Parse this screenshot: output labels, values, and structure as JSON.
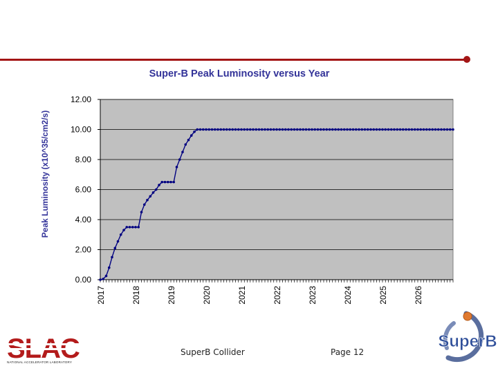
{
  "slide": {
    "footer_center": "SuperB Collider",
    "footer_page": "Page 12",
    "slac_logo_text": "SLAC",
    "slac_logo_subtext": "NATIONAL ACCELERATOR LABORATORY",
    "superb_logo_text": "SuperB"
  },
  "colors": {
    "accent_rule": "#a31515",
    "plot_background": "#c0c0c0",
    "series_color": "#000080",
    "title_color": "#333399"
  },
  "chart_data": {
    "type": "line",
    "title": "Super-B Peak Luminosity versus Year",
    "xlabel": "",
    "ylabel": "Peak Luminosity (x10^35/cm2/s)",
    "ylim": [
      0,
      12
    ],
    "yticks": [
      "0.00",
      "2.00",
      "4.00",
      "6.00",
      "8.00",
      "10.00",
      "12.00"
    ],
    "x_range": [
      2017.0,
      2027.0
    ],
    "x_tick_labels": [
      "2017",
      "2018",
      "2019",
      "2020",
      "2021",
      "2022",
      "2023",
      "2024",
      "2025",
      "2026"
    ],
    "grid": "horizontal",
    "legend": "none",
    "series": [
      {
        "name": "Peak Luminosity",
        "x": [
          2017.0,
          2017.083,
          2017.167,
          2017.25,
          2017.333,
          2017.417,
          2017.5,
          2017.583,
          2017.667,
          2017.75,
          2017.833,
          2017.917,
          2018.0,
          2018.083,
          2018.167,
          2018.25,
          2018.333,
          2018.417,
          2018.5,
          2018.583,
          2018.667,
          2018.75,
          2018.833,
          2018.917,
          2019.0,
          2019.083,
          2019.167,
          2019.25,
          2019.333,
          2019.417,
          2019.5,
          2019.583,
          2019.667,
          2019.75,
          2019.833,
          2019.917,
          2020.0,
          2020.083,
          2020.167,
          2020.25,
          2020.333,
          2020.417,
          2020.5,
          2020.583,
          2020.667,
          2020.75,
          2020.833,
          2020.917,
          2021.0,
          2021.083,
          2021.167,
          2021.25,
          2021.333,
          2021.417,
          2021.5,
          2021.583,
          2021.667,
          2021.75,
          2021.833,
          2021.917,
          2022.0,
          2022.083,
          2022.167,
          2022.25,
          2022.333,
          2022.417,
          2022.5,
          2022.583,
          2022.667,
          2022.75,
          2022.833,
          2022.917,
          2023.0,
          2023.083,
          2023.167,
          2023.25,
          2023.333,
          2023.417,
          2023.5,
          2023.583,
          2023.667,
          2023.75,
          2023.833,
          2023.917,
          2024.0,
          2024.083,
          2024.167,
          2024.25,
          2024.333,
          2024.417,
          2024.5,
          2024.583,
          2024.667,
          2024.75,
          2024.833,
          2024.917,
          2025.0,
          2025.083,
          2025.167,
          2025.25,
          2025.333,
          2025.417,
          2025.5,
          2025.583,
          2025.667,
          2025.75,
          2025.833,
          2025.917,
          2026.0,
          2026.083,
          2026.167,
          2026.25,
          2026.333,
          2026.417,
          2026.5,
          2026.583,
          2026.667,
          2026.75,
          2026.833,
          2026.917,
          2027.0
        ],
        "y": [
          0,
          0.05,
          0.25,
          0.8,
          1.5,
          2.1,
          2.55,
          3.0,
          3.3,
          3.5,
          3.5,
          3.5,
          3.5,
          3.5,
          4.5,
          5.0,
          5.3,
          5.55,
          5.8,
          6.0,
          6.3,
          6.5,
          6.5,
          6.5,
          6.5,
          6.5,
          7.5,
          8.0,
          8.5,
          9.0,
          9.3,
          9.6,
          9.85,
          10,
          10,
          10,
          10,
          10,
          10,
          10,
          10,
          10,
          10,
          10,
          10,
          10,
          10,
          10,
          10,
          10,
          10,
          10,
          10,
          10,
          10,
          10,
          10,
          10,
          10,
          10,
          10,
          10,
          10,
          10,
          10,
          10,
          10,
          10,
          10,
          10,
          10,
          10,
          10,
          10,
          10,
          10,
          10,
          10,
          10,
          10,
          10,
          10,
          10,
          10,
          10,
          10,
          10,
          10,
          10,
          10,
          10,
          10,
          10,
          10,
          10,
          10,
          10,
          10,
          10,
          10,
          10,
          10,
          10,
          10,
          10,
          10,
          10,
          10,
          10,
          10,
          10,
          10,
          10,
          10,
          10,
          10,
          10,
          10,
          10,
          10,
          10
        ]
      }
    ]
  }
}
